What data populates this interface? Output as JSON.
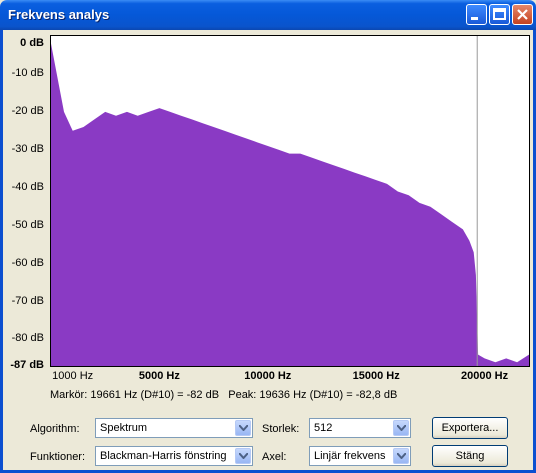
{
  "window": {
    "title": "Frekvens analys",
    "controls": [
      "minimize-icon",
      "maximize-icon",
      "close-icon"
    ]
  },
  "accent_color": "#8a3ac4",
  "chart_data": {
    "type": "area",
    "title": "",
    "xlabel": "",
    "ylabel": "",
    "xlim": [
      0,
      22050
    ],
    "ylim": [
      -87,
      0
    ],
    "grid": false,
    "legend": "none",
    "y_ticks": [
      "0 dB",
      "-10 dB",
      "-20 dB",
      "-30 dB",
      "-40 dB",
      "-50 dB",
      "-60 dB",
      "-70 dB",
      "-80 dB",
      "-87 dB"
    ],
    "x_ticks": [
      "1000 Hz",
      "5000 Hz",
      "10000 Hz",
      "15000 Hz",
      "20000 Hz"
    ],
    "marker_hz": 19661,
    "series": [
      {
        "x": [
          0,
          200,
          600,
          1000,
          1500,
          2000,
          2500,
          3000,
          3500,
          4000,
          4500,
          5000,
          5500,
          6000,
          6500,
          7000,
          7500,
          8000,
          8500,
          9000,
          9500,
          10000,
          10500,
          11000,
          11500,
          12000,
          12500,
          13000,
          13500,
          14000,
          14500,
          15000,
          15500,
          16000,
          16500,
          17000,
          17500,
          18000,
          18500,
          19000,
          19300,
          19500,
          19600,
          19700,
          20000,
          20500,
          21000,
          21500,
          22050
        ],
        "values": [
          -2,
          -8,
          -20,
          -25,
          -24,
          -22,
          -20,
          -21,
          -20,
          -21,
          -20,
          -19,
          -20,
          -21,
          -22,
          -23,
          -24,
          -25,
          -26,
          -27,
          -28,
          -29,
          -30,
          -31,
          -31,
          -32,
          -33,
          -34,
          -35,
          -36,
          -37,
          -38,
          -39,
          -41,
          -42,
          -44,
          -45,
          -47,
          -49,
          -51,
          -54,
          -57,
          -63,
          -84,
          -85,
          -86,
          -85,
          -86,
          -84
        ]
      }
    ]
  },
  "readout": {
    "marker": "Markör: 19661 Hz (D#10) = -82 dB",
    "peak": "Peak: 19636 Hz (D#10) = -82,8 dB"
  },
  "controls": {
    "algorithm": {
      "label": "Algorithm:",
      "value": "Spektrum"
    },
    "functions": {
      "label": "Funktioner:",
      "value": "Blackman-Harris fönstring"
    },
    "size": {
      "label": "Storlek:",
      "value": "512"
    },
    "axis": {
      "label": "Axel:",
      "value": "Linjär frekvens"
    },
    "export_label": "Exportera...",
    "close_label": "Stäng"
  }
}
